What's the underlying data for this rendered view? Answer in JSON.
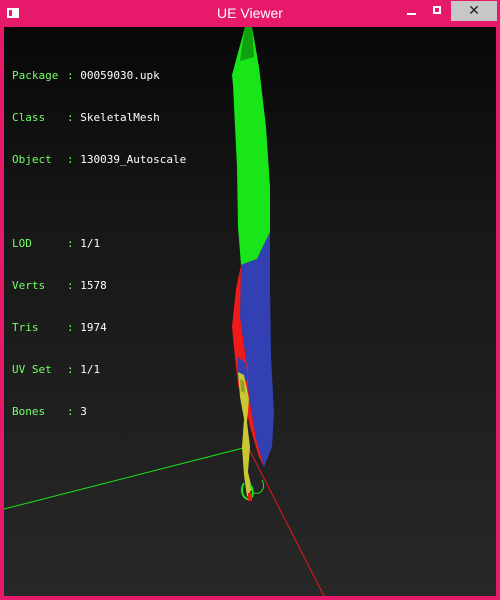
{
  "window": {
    "title": "UE Viewer",
    "buttons": {
      "minimize": "",
      "maximize": "",
      "close": "✕"
    }
  },
  "info": {
    "rows_top": [
      {
        "label": "Package",
        "value": "00059030.upk"
      },
      {
        "label": "Class  ",
        "value": "SkeletalMesh"
      },
      {
        "label": "Object ",
        "value": "130039_Autoscale"
      }
    ],
    "rows_bottom": [
      {
        "label": "LOD    ",
        "value": "1/1"
      },
      {
        "label": "Verts  ",
        "value": "1578"
      },
      {
        "label": "Tris   ",
        "value": "1974"
      },
      {
        "label": "UV Set ",
        "value": "1/1"
      },
      {
        "label": "Bones  ",
        "value": "3"
      }
    ]
  },
  "colors": {
    "frame": "#e6196b",
    "label_text": "#73ff66",
    "value_text": "#ffffff",
    "mesh_green": "#19e619",
    "mesh_blue": "#3340b3",
    "mesh_red": "#f01a1a",
    "mesh_yellow": "#c8c832",
    "axis_green": "#19e619",
    "axis_red": "#e61919"
  }
}
